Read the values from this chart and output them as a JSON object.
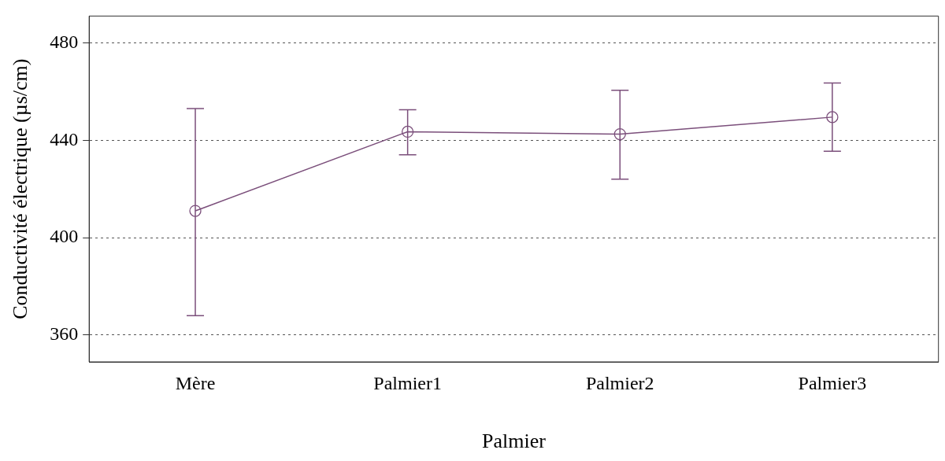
{
  "chart_data": {
    "type": "line",
    "xlabel": "Palmier",
    "ylabel": "Conductivité électrique (µs/cm)",
    "categories": [
      "Mère",
      "Palmier1",
      "Palmier2",
      "Palmier3"
    ],
    "series": [
      {
        "color": "#7b4f7b",
        "values": [
          411,
          443.5,
          442.5,
          449.5
        ],
        "errors": [
          [
            368,
            453
          ],
          [
            434,
            452.5
          ],
          [
            424,
            460.5
          ],
          [
            435.5,
            463.5
          ]
        ]
      }
    ],
    "ylim": [
      349,
      491
    ],
    "yticks": [
      360,
      400,
      440,
      480
    ],
    "grid": "y",
    "marker": "circle",
    "line_style": "solid",
    "legend": false
  }
}
